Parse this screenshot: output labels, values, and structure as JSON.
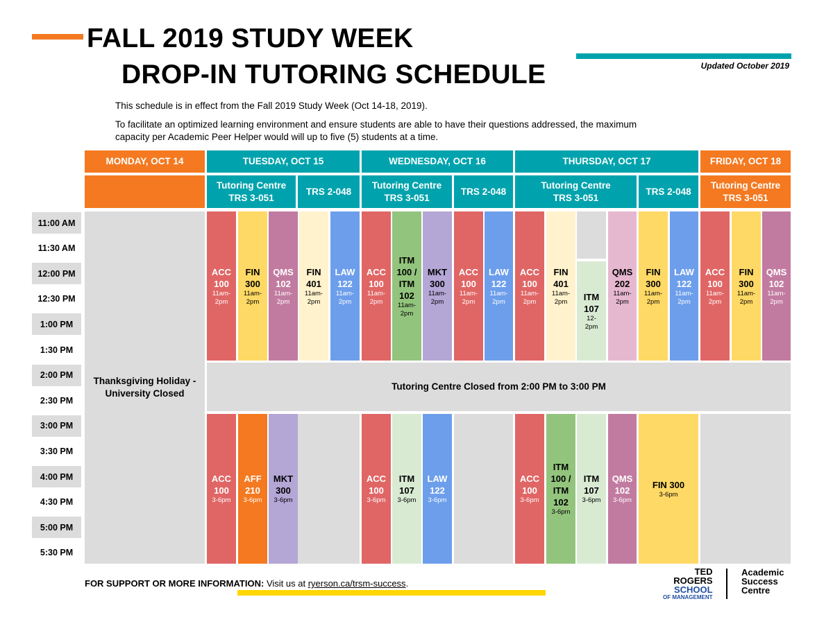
{
  "header": {
    "title_line1": "FALL 2019 STUDY WEEK",
    "title_line2": "DROP-IN TUTORING SCHEDULE",
    "updated": "Updated October 2019",
    "intro1": "This schedule is in effect from the Fall 2019 Study Week (Oct 14-18, 2019).",
    "intro2": "To facilitate an optimized learning environment and ensure students are able to have their questions addressed, the maximum capacity per Academic Peer Helper would will up to five (5) students at a time."
  },
  "colors": {
    "orange": "#f47920",
    "teal": "#00a3ad",
    "yellow": "#ffd600",
    "red": "#e06666",
    "lightyellow": "#fff2cc",
    "purple": "#c27ba0",
    "blue": "#6d9eeb",
    "green": "#93c47d",
    "lightgreen": "#d9ead3",
    "lavender": "#b4a7d6",
    "lightpink": "#e6b8cf",
    "gold": "#ffd966"
  },
  "days": [
    {
      "label": "MONDAY, OCT 14"
    },
    {
      "label": "TUESDAY, OCT 15"
    },
    {
      "label": "WEDNESDAY, OCT 16"
    },
    {
      "label": "THURSDAY, OCT 17"
    },
    {
      "label": "FRIDAY, OCT 18"
    }
  ],
  "locations": {
    "tc_line1": "Tutoring Centre",
    "tc_line2": "TRS 3-051",
    "trs": "TRS 2-048"
  },
  "time_slots": [
    "11:00 AM",
    "11:30 AM",
    "12:00 PM",
    "12:30 PM",
    "1:00 PM",
    "1:30 PM",
    "2:00 PM",
    "2:30 PM",
    "3:00 PM",
    "3:30 PM",
    "4:00 PM",
    "4:30 PM",
    "5:00 PM",
    "5:30 PM"
  ],
  "monday": {
    "line1": "Thanksgiving Holiday -",
    "line2": "University Closed"
  },
  "closed_notice": "Tutoring Centre Closed from 2:00 PM to 3:00 PM",
  "morning": [
    {
      "l1": "ACC",
      "l2": "100",
      "t": "11am-2pm"
    },
    {
      "l1": "FIN",
      "l2": "300",
      "t": "11am-2pm"
    },
    {
      "l1": "QMS",
      "l2": "102",
      "t": "11am-2pm"
    },
    {
      "l1": "FIN",
      "l2": "401",
      "t": "11am-2pm"
    },
    {
      "l1": "LAW",
      "l2": "122",
      "t": "11am-2pm"
    },
    {
      "l1": "ACC",
      "l2": "100",
      "t": "11am-2pm"
    },
    {
      "l1": "ITM",
      "l2": "100 /",
      "l3": "ITM",
      "l4": "102",
      "t": "11am-2pm"
    },
    {
      "l1": "MKT",
      "l2": "300",
      "t": "11am-2pm"
    },
    {
      "l1": "ACC",
      "l2": "100",
      "t": "11am-2pm"
    },
    {
      "l1": "LAW",
      "l2": "122",
      "t": "11am-2pm"
    },
    {
      "l1": "ACC",
      "l2": "100",
      "t": "11am-2pm"
    },
    {
      "l1": "FIN",
      "l2": "401",
      "t": "11am-2pm"
    },
    {
      "l1": "ITM",
      "l2": "107",
      "t": "12-2pm"
    },
    {
      "l1": "QMS",
      "l2": "202",
      "t": "11am-2pm"
    },
    {
      "l1": "FIN",
      "l2": "300",
      "t": "11am-2pm"
    },
    {
      "l1": "LAW",
      "l2": "122",
      "t": "11am-2pm"
    },
    {
      "l1": "ACC",
      "l2": "100",
      "t": "11am-2pm"
    },
    {
      "l1": "FIN",
      "l2": "300",
      "t": "11am-2pm"
    },
    {
      "l1": "QMS",
      "l2": "102",
      "t": "11am-2pm"
    }
  ],
  "afternoon": [
    {
      "l1": "ACC",
      "l2": "100",
      "t": "3-6pm"
    },
    {
      "l1": "AFF",
      "l2": "210",
      "t": "3-6pm"
    },
    {
      "l1": "MKT",
      "l2": "300",
      "t": "3-6pm"
    },
    {
      "l1": "ACC",
      "l2": "100",
      "t": "3-6pm"
    },
    {
      "l1": "ITM",
      "l2": "107",
      "t": "3-6pm"
    },
    {
      "l1": "LAW",
      "l2": "122",
      "t": "3-6pm"
    },
    {
      "l1": "ACC",
      "l2": "100",
      "t": "3-6pm"
    },
    {
      "l1": "ITM",
      "l2": "100 /",
      "l3": "ITM",
      "l4": "102",
      "t": "3-6pm"
    },
    {
      "l1": "ITM",
      "l2": "107",
      "t": "3-6pm"
    },
    {
      "l1": "QMS",
      "l2": "102",
      "t": "3-6pm"
    },
    {
      "l1": "FIN 300",
      "t": "3-6pm"
    }
  ],
  "footer": {
    "label": "FOR SUPPORT OR MORE INFORMATION:",
    "text": "Visit us at",
    "link": "ryerson.ca/trsm-success",
    "end": "."
  },
  "logo": {
    "l1": "TED",
    "l2": "ROGERS",
    "l3": "SCHOOL",
    "l4": "OF MANAGEMENT",
    "asc1": "Academic",
    "asc2": "Success",
    "asc3": "Centre"
  }
}
